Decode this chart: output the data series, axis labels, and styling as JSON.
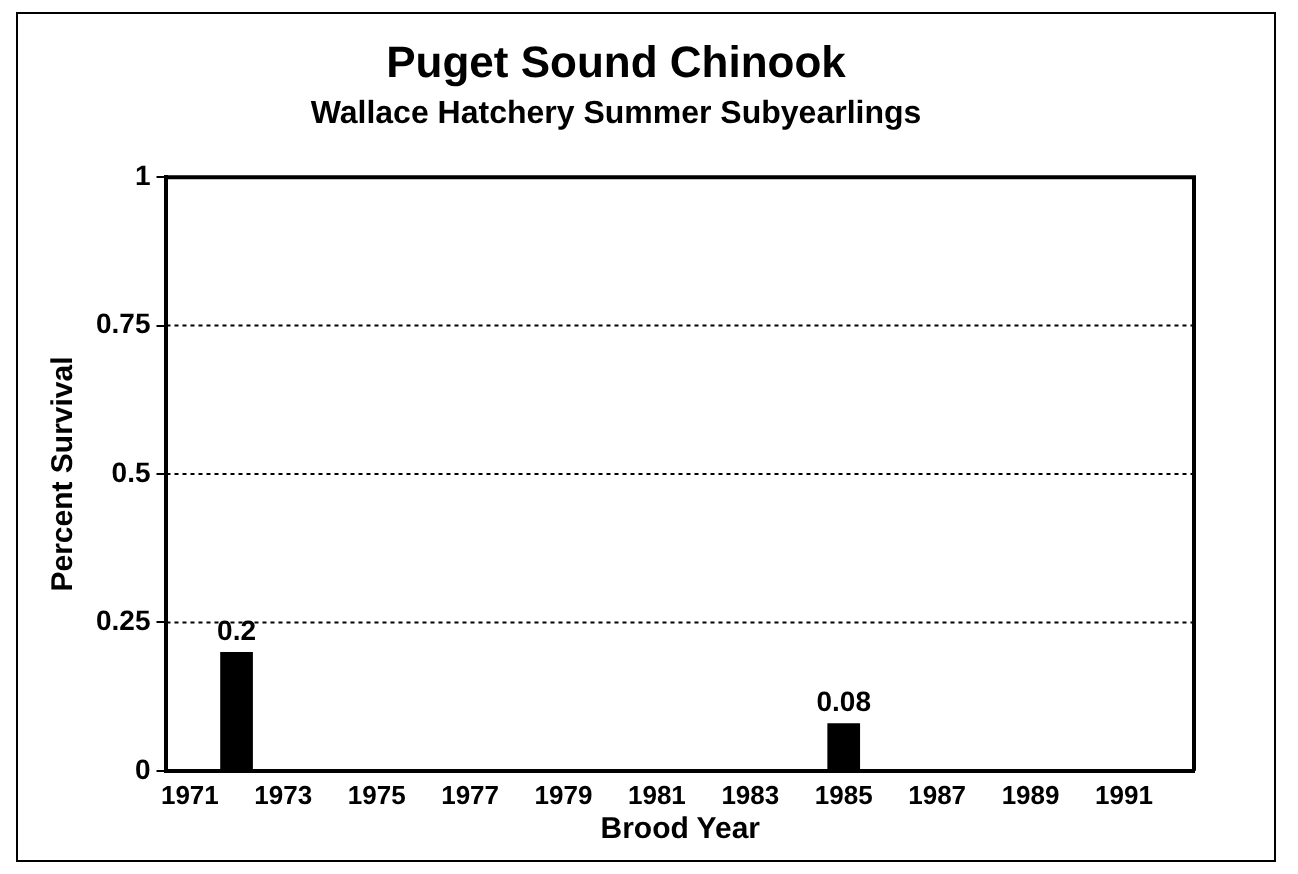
{
  "chart_data": {
    "type": "bar",
    "title": "Puget Sound Chinook",
    "subtitle": "Wallace Hatchery Summer Subyearlings",
    "xlabel": "Brood Year",
    "ylabel": "Percent Survival",
    "categories": [
      "1971",
      null,
      "1973",
      null,
      "1975",
      null,
      "1977",
      null,
      "1979",
      null,
      "1981",
      null,
      "1983",
      null,
      "1985",
      null,
      "1987",
      null,
      "1989",
      null,
      "1991",
      null
    ],
    "values": [
      null,
      0.2,
      null,
      null,
      null,
      null,
      null,
      null,
      null,
      null,
      null,
      null,
      null,
      null,
      0.08,
      null,
      null,
      null,
      null,
      null,
      null,
      null
    ],
    "color": "#000000",
    "ylim": [
      0,
      1
    ],
    "yticks": [
      0,
      0.25,
      0.5,
      0.75,
      1
    ],
    "grid": "y",
    "data_labels": true,
    "legend": false
  }
}
